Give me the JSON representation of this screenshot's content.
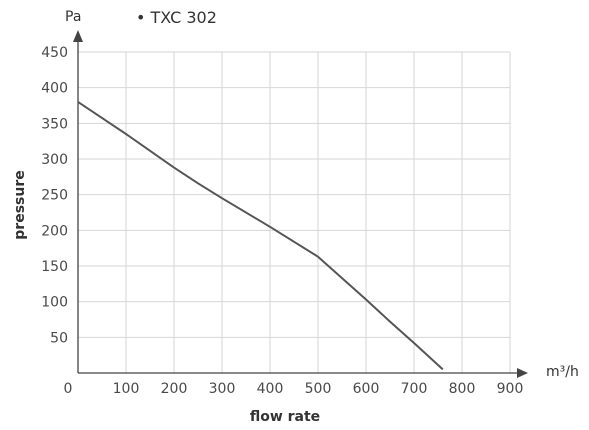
{
  "chart_data": {
    "type": "line",
    "title": "• TXC 302",
    "xlabel": "flow rate",
    "ylabel": "pressure",
    "x_unit": "m³/h",
    "y_unit": "Pa",
    "xlim": [
      0,
      900
    ],
    "ylim": [
      0,
      450
    ],
    "x_ticks": [
      0,
      100,
      200,
      300,
      400,
      500,
      600,
      700,
      800,
      900
    ],
    "y_ticks": [
      50,
      100,
      150,
      200,
      250,
      300,
      350,
      400,
      450
    ],
    "grid": true,
    "series": [
      {
        "color": "#555555",
        "x": [
          0,
          100,
          200,
          250,
          300,
          400,
          500,
          550,
          600,
          650,
          700,
          760
        ],
        "y": [
          380,
          335,
          288,
          266,
          245,
          205,
          163,
          133,
          103,
          72,
          42,
          5
        ]
      }
    ]
  }
}
